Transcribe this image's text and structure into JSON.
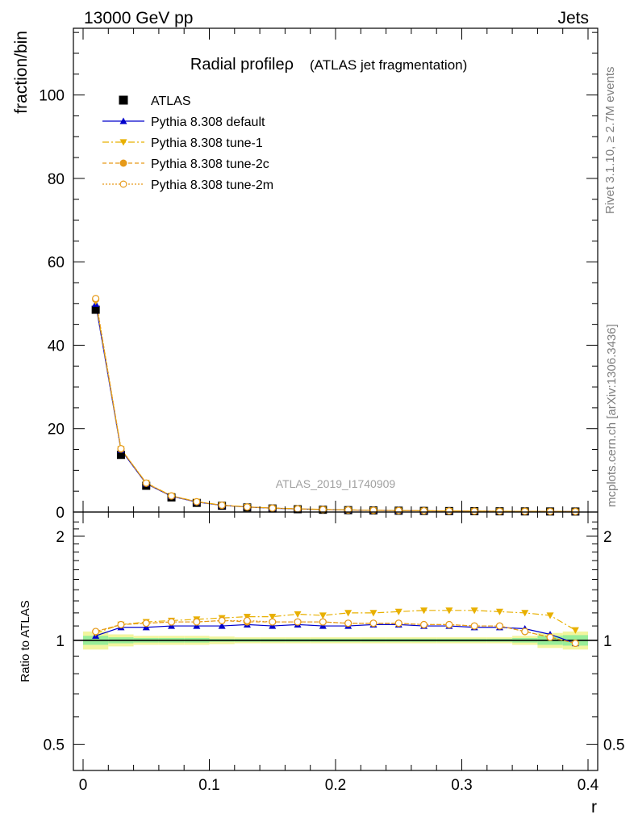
{
  "header": {
    "left_label": "13000 GeV pp",
    "right_label": "Jets"
  },
  "side_labels": {
    "rivet": "Rivet 3.1.10, ≥ 2.7M events",
    "source": "mcplots.cern.ch [arXiv:1306.3436]"
  },
  "chart_data": [
    {
      "type": "line",
      "title": "Radial profileρ",
      "subtitle": "(ATLAS jet fragmentation)",
      "ylabel": "fraction/bin",
      "xlabel": "",
      "watermark": "ATLAS_2019_I1740909",
      "xlim": [
        -0.0125,
        0.4
      ],
      "ylim": [
        0,
        116
      ],
      "yticks": [
        0,
        20,
        40,
        60,
        80,
        100
      ],
      "ytick_labels": [
        "0",
        "20",
        "40",
        "60",
        "80",
        "100"
      ],
      "legend_position": "top-left",
      "x": [
        0.01,
        0.03,
        0.05,
        0.07,
        0.09,
        0.11,
        0.13,
        0.15,
        0.17,
        0.19,
        0.21,
        0.23,
        0.25,
        0.27,
        0.29,
        0.31,
        0.33,
        0.35,
        0.37,
        0.39
      ],
      "series": [
        {
          "name": "ATLAS",
          "color": "#000000",
          "marker": "square",
          "values": [
            48.5,
            13.7,
            6.3,
            3.5,
            2.2,
            1.5,
            1.1,
            0.85,
            0.68,
            0.55,
            0.45,
            0.38,
            0.32,
            0.27,
            0.23,
            0.2,
            0.17,
            0.15,
            0.13,
            0.12
          ]
        },
        {
          "name": "Pythia 8.308 default",
          "color": "#0000cc",
          "marker": "triangle-up",
          "dash": "",
          "values": [
            49.9,
            14.9,
            6.8,
            3.8,
            2.4,
            1.6,
            1.2,
            0.92,
            0.73,
            0.59,
            0.49,
            0.41,
            0.35,
            0.29,
            0.25,
            0.21,
            0.18,
            0.16,
            0.135,
            0.118
          ]
        },
        {
          "name": "Pythia 8.308 tune-1",
          "color": "#e8b000",
          "marker": "triangle-down",
          "dash": "8,3,2,3",
          "values": [
            50.5,
            15.1,
            7.0,
            3.9,
            2.5,
            1.68,
            1.24,
            0.97,
            0.78,
            0.63,
            0.52,
            0.44,
            0.37,
            0.32,
            0.27,
            0.23,
            0.2,
            0.17,
            0.15,
            0.13
          ]
        },
        {
          "name": "Pythia 8.308 tune-2c",
          "color": "#e69a1a",
          "marker": "circle",
          "dash": "5,3",
          "values": [
            51.0,
            15.1,
            6.9,
            3.85,
            2.45,
            1.62,
            1.2,
            0.93,
            0.74,
            0.6,
            0.49,
            0.41,
            0.35,
            0.3,
            0.25,
            0.21,
            0.18,
            0.16,
            0.13,
            0.12
          ]
        },
        {
          "name": "Pythia 8.308 tune-2m",
          "color": "#e69a1a",
          "marker": "circle-open",
          "dash": "2,2",
          "values": [
            51.2,
            15.2,
            6.95,
            3.87,
            2.47,
            1.63,
            1.21,
            0.94,
            0.75,
            0.6,
            0.5,
            0.42,
            0.35,
            0.3,
            0.25,
            0.21,
            0.18,
            0.16,
            0.13,
            0.12
          ]
        }
      ]
    },
    {
      "type": "line",
      "title": "",
      "ylabel": "Ratio to ATLAS",
      "xlabel": "r",
      "log_y": true,
      "ylim": [
        0.42,
        2.35
      ],
      "xlim": [
        -0.0125,
        0.4
      ],
      "yticks": [
        0.5,
        1,
        2
      ],
      "ytick_labels": [
        "0.5",
        "1",
        "2"
      ],
      "xticks": [
        0,
        0.1,
        0.2,
        0.3,
        0.4
      ],
      "xtick_labels": [
        "0",
        "0.1",
        "0.2",
        "0.3",
        "0.4"
      ],
      "x": [
        0.01,
        0.03,
        0.05,
        0.07,
        0.09,
        0.11,
        0.13,
        0.15,
        0.17,
        0.19,
        0.21,
        0.23,
        0.25,
        0.27,
        0.29,
        0.31,
        0.33,
        0.35,
        0.37,
        0.39
      ],
      "bin_edges": [
        0,
        0.02,
        0.04,
        0.06,
        0.08,
        0.1,
        0.12,
        0.14,
        0.16,
        0.18,
        0.2,
        0.22,
        0.24,
        0.26,
        0.28,
        0.3,
        0.32,
        0.34,
        0.36,
        0.38,
        0.4
      ],
      "band_inner": [
        0.03,
        0.02,
        0.015,
        0.015,
        0.015,
        0.01,
        0.01,
        0.01,
        0.01,
        0.01,
        0.01,
        0.01,
        0.01,
        0.01,
        0.01,
        0.01,
        0.01,
        0.015,
        0.03,
        0.035
      ],
      "band_outer": [
        0.06,
        0.04,
        0.03,
        0.03,
        0.03,
        0.025,
        0.02,
        0.02,
        0.02,
        0.02,
        0.02,
        0.02,
        0.02,
        0.02,
        0.02,
        0.02,
        0.02,
        0.03,
        0.05,
        0.06
      ],
      "band_colors": {
        "outer": "#f2f59e",
        "inner": "#99ee99",
        "reference_line": "#00aa00"
      },
      "series": [
        {
          "name": "Pythia 8.308 default",
          "color": "#0000cc",
          "marker": "triangle-up",
          "dash": "",
          "values": [
            1.03,
            1.09,
            1.09,
            1.1,
            1.1,
            1.1,
            1.11,
            1.1,
            1.11,
            1.1,
            1.1,
            1.11,
            1.11,
            1.1,
            1.1,
            1.09,
            1.09,
            1.08,
            1.04,
            0.98
          ]
        },
        {
          "name": "Pythia 8.308 tune-1",
          "color": "#e8b000",
          "marker": "triangle-down",
          "dash": "8,3,2,3",
          "values": [
            1.05,
            1.11,
            1.13,
            1.14,
            1.15,
            1.16,
            1.17,
            1.17,
            1.19,
            1.18,
            1.2,
            1.2,
            1.21,
            1.22,
            1.22,
            1.22,
            1.21,
            1.2,
            1.18,
            1.07
          ]
        },
        {
          "name": "Pythia 8.308 tune-2c",
          "color": "#e69a1a",
          "marker": "circle",
          "dash": "5,3",
          "values": [
            1.06,
            1.11,
            1.12,
            1.13,
            1.13,
            1.14,
            1.13,
            1.13,
            1.13,
            1.13,
            1.12,
            1.12,
            1.12,
            1.11,
            1.11,
            1.1,
            1.1,
            1.06,
            1.02,
            0.98
          ]
        },
        {
          "name": "Pythia 8.308 tune-2m",
          "color": "#e69a1a",
          "marker": "circle-open",
          "dash": "2,2",
          "values": [
            1.06,
            1.11,
            1.12,
            1.13,
            1.13,
            1.14,
            1.14,
            1.13,
            1.13,
            1.13,
            1.12,
            1.12,
            1.12,
            1.11,
            1.11,
            1.1,
            1.1,
            1.06,
            1.02,
            0.98
          ]
        }
      ]
    }
  ]
}
